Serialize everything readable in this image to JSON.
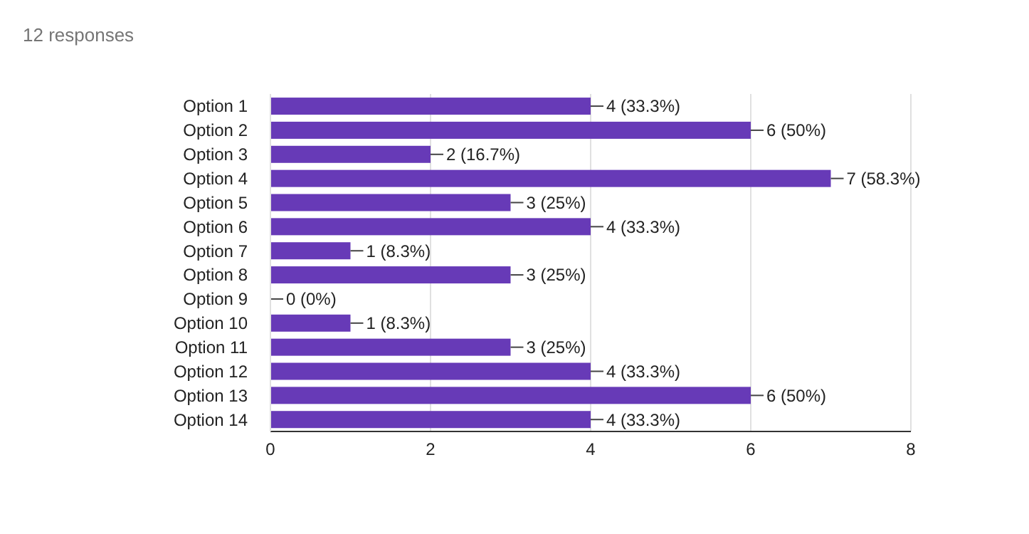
{
  "chart_data": {
    "type": "bar",
    "orientation": "horizontal",
    "subtitle": "12 responses",
    "categories": [
      "Option 1",
      "Option 2",
      "Option 3",
      "Option 4",
      "Option 5",
      "Option 6",
      "Option 7",
      "Option 8",
      "Option 9",
      "Option 10",
      "Option 11",
      "Option 12",
      "Option 13",
      "Option 14"
    ],
    "values": [
      4,
      6,
      2,
      7,
      3,
      4,
      1,
      3,
      0,
      1,
      3,
      4,
      6,
      4
    ],
    "value_labels": [
      "4 (33.3%)",
      "6 (50%)",
      "2 (16.7%)",
      "7 (58.3%)",
      "3 (25%)",
      "4 (33.3%)",
      "1 (8.3%)",
      "3 (25%)",
      "0 (0%)",
      "1 (8.3%)",
      "3 (25%)",
      "4 (33.3%)",
      "6 (50%)",
      "4 (33.3%)"
    ],
    "color": "#673ab7",
    "xlim": [
      0,
      8
    ],
    "xticks": [
      0,
      2,
      4,
      6,
      8
    ],
    "grid": "x"
  }
}
